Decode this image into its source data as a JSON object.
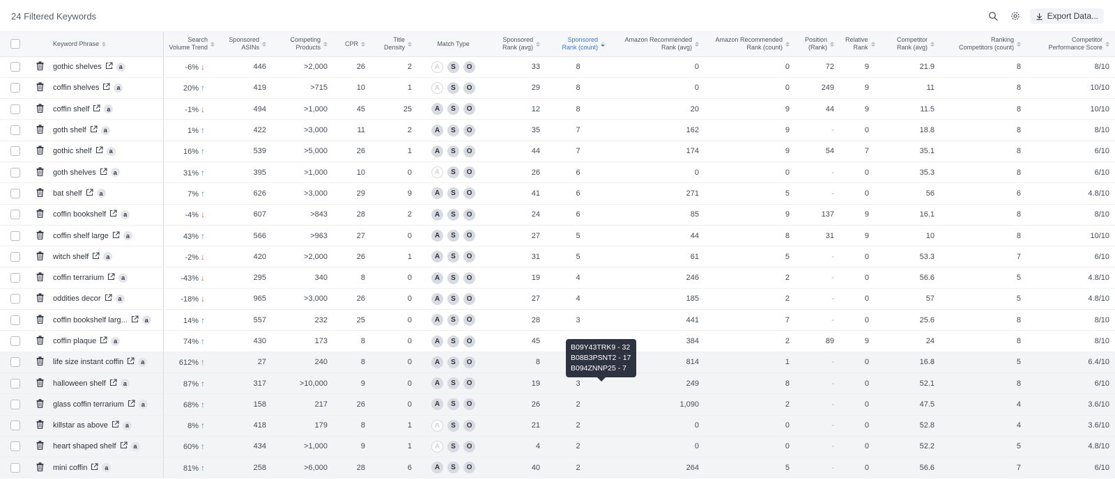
{
  "header": {
    "title": "24 Filtered Keywords",
    "export_label": "Export Data..."
  },
  "columns": {
    "keyword_phrase": "Keyword Phrase",
    "search_volume_trend": [
      "Search",
      "Volume Trend"
    ],
    "sponsored_asins": [
      "Sponsored",
      "ASINs"
    ],
    "competing_products": [
      "Competing",
      "Products"
    ],
    "cpr": "CPR",
    "title_density": [
      "Title",
      "Density"
    ],
    "match_type": "Match Type",
    "sponsored_rank_avg": [
      "Sponsored",
      "Rank (avg)"
    ],
    "sponsored_rank_count": [
      "Sponsored",
      "Rank (count)"
    ],
    "amazon_rec_rank_avg": [
      "Amazon Recommended",
      "Rank (avg)"
    ],
    "amazon_rec_rank_count": [
      "Amazon Recommended",
      "Rank (count)"
    ],
    "position_rank": [
      "Position",
      "(Rank)"
    ],
    "relative_rank": [
      "Relative",
      "Rank"
    ],
    "competitor_rank_avg": [
      "Competitor",
      "Rank (avg)"
    ],
    "ranking_competitors_count": [
      "Ranking",
      "Competitors (count)"
    ],
    "competitor_performance_score": [
      "Competitor",
      "Performance Score"
    ]
  },
  "match_type_letters": [
    "A",
    "S",
    "O"
  ],
  "amazon_badge_letter": "a",
  "rows": [
    {
      "keyword": "gothic shelves",
      "trend": "-6%",
      "dir": "down",
      "asins": "446",
      "competing": ">2,000",
      "cpr": "26",
      "density": "2",
      "a_on": false,
      "spons_avg": "33",
      "spons_count": "8",
      "amz_avg": "0",
      "amz_count": "0",
      "position": "72",
      "relative": "9",
      "comp_avg": "21.9",
      "rank_comp": "8",
      "score": "8/10"
    },
    {
      "keyword": "coffin shelves",
      "trend": "20%",
      "dir": "up",
      "asins": "419",
      "competing": ">715",
      "cpr": "10",
      "density": "1",
      "a_on": false,
      "spons_avg": "29",
      "spons_count": "8",
      "amz_avg": "0",
      "amz_count": "0",
      "position": "249",
      "relative": "9",
      "comp_avg": "11",
      "rank_comp": "8",
      "score": "10/10"
    },
    {
      "keyword": "coffin shelf",
      "trend": "-1%",
      "dir": "down",
      "asins": "494",
      "competing": ">1,000",
      "cpr": "45",
      "density": "25",
      "a_on": true,
      "spons_avg": "12",
      "spons_count": "8",
      "amz_avg": "20",
      "amz_count": "9",
      "position": "44",
      "relative": "9",
      "comp_avg": "11.5",
      "rank_comp": "8",
      "score": "10/10"
    },
    {
      "keyword": "goth shelf",
      "trend": "1%",
      "dir": "up",
      "asins": "422",
      "competing": ">3,000",
      "cpr": "11",
      "density": "2",
      "a_on": true,
      "spons_avg": "35",
      "spons_count": "7",
      "amz_avg": "162",
      "amz_count": "9",
      "position": "-",
      "relative": "0",
      "comp_avg": "18.8",
      "rank_comp": "8",
      "score": "8/10"
    },
    {
      "keyword": "gothic shelf",
      "trend": "16%",
      "dir": "up",
      "asins": "539",
      "competing": ">5,000",
      "cpr": "26",
      "density": "1",
      "a_on": true,
      "spons_avg": "44",
      "spons_count": "7",
      "amz_avg": "174",
      "amz_count": "9",
      "position": "54",
      "relative": "7",
      "comp_avg": "35.1",
      "rank_comp": "8",
      "score": "6/10"
    },
    {
      "keyword": "goth shelves",
      "trend": "31%",
      "dir": "up",
      "asins": "395",
      "competing": ">1,000",
      "cpr": "10",
      "density": "0",
      "a_on": false,
      "spons_avg": "26",
      "spons_count": "6",
      "amz_avg": "0",
      "amz_count": "0",
      "position": "-",
      "relative": "0",
      "comp_avg": "35.3",
      "rank_comp": "8",
      "score": "6/10"
    },
    {
      "keyword": "bat shelf",
      "trend": "7%",
      "dir": "up",
      "asins": "626",
      "competing": ">3,000",
      "cpr": "29",
      "density": "9",
      "a_on": true,
      "spons_avg": "41",
      "spons_count": "6",
      "amz_avg": "271",
      "amz_count": "5",
      "position": "-",
      "relative": "0",
      "comp_avg": "56",
      "rank_comp": "6",
      "score": "4.8/10"
    },
    {
      "keyword": "coffin bookshelf",
      "trend": "-4%",
      "dir": "down",
      "asins": "607",
      "competing": ">843",
      "cpr": "28",
      "density": "2",
      "a_on": true,
      "spons_avg": "24",
      "spons_count": "6",
      "amz_avg": "85",
      "amz_count": "9",
      "position": "137",
      "relative": "9",
      "comp_avg": "16.1",
      "rank_comp": "8",
      "score": "8/10"
    },
    {
      "keyword": "coffin shelf large",
      "trend": "43%",
      "dir": "up",
      "asins": "566",
      "competing": ">963",
      "cpr": "27",
      "density": "0",
      "a_on": true,
      "spons_avg": "27",
      "spons_count": "5",
      "amz_avg": "44",
      "amz_count": "8",
      "position": "31",
      "relative": "9",
      "comp_avg": "10",
      "rank_comp": "8",
      "score": "10/10"
    },
    {
      "keyword": "witch shelf",
      "trend": "-2%",
      "dir": "down",
      "asins": "420",
      "competing": ">2,000",
      "cpr": "26",
      "density": "1",
      "a_on": true,
      "spons_avg": "31",
      "spons_count": "5",
      "amz_avg": "61",
      "amz_count": "5",
      "position": "-",
      "relative": "0",
      "comp_avg": "53.3",
      "rank_comp": "7",
      "score": "6/10"
    },
    {
      "keyword": "coffin terrarium",
      "trend": "-43%",
      "dir": "down",
      "asins": "295",
      "competing": "340",
      "cpr": "8",
      "density": "0",
      "a_on": true,
      "spons_avg": "19",
      "spons_count": "4",
      "amz_avg": "246",
      "amz_count": "2",
      "position": "-",
      "relative": "0",
      "comp_avg": "56.6",
      "rank_comp": "5",
      "score": "4.8/10"
    },
    {
      "keyword": "oddities decor",
      "trend": "-18%",
      "dir": "down",
      "asins": "965",
      "competing": ">3,000",
      "cpr": "26",
      "density": "0",
      "a_on": true,
      "spons_avg": "27",
      "spons_count": "4",
      "amz_avg": "185",
      "amz_count": "2",
      "position": "-",
      "relative": "0",
      "comp_avg": "57",
      "rank_comp": "5",
      "score": "4.8/10"
    },
    {
      "keyword": "coffin bookshelf larg...",
      "trend": "14%",
      "dir": "up",
      "asins": "557",
      "competing": "232",
      "cpr": "25",
      "density": "0",
      "a_on": true,
      "spons_avg": "28",
      "spons_count": "3",
      "amz_avg": "441",
      "amz_count": "7",
      "position": "-",
      "relative": "0",
      "comp_avg": "25.6",
      "rank_comp": "8",
      "score": "8/10"
    },
    {
      "keyword": "coffin plaque",
      "trend": "74%",
      "dir": "up",
      "asins": "430",
      "competing": "173",
      "cpr": "8",
      "density": "0",
      "a_on": true,
      "spons_avg": "45",
      "spons_count": "",
      "amz_avg": "384",
      "amz_count": "2",
      "position": "89",
      "relative": "9",
      "comp_avg": "24",
      "rank_comp": "8",
      "score": "8/10"
    },
    {
      "keyword": "life size instant coffin",
      "trend": "612%",
      "dir": "up",
      "asins": "27",
      "competing": "240",
      "cpr": "8",
      "density": "0",
      "a_on": true,
      "spons_avg": "8",
      "spons_count": "",
      "amz_avg": "814",
      "amz_count": "1",
      "position": "-",
      "relative": "0",
      "comp_avg": "16.8",
      "rank_comp": "5",
      "score": "6.4/10"
    },
    {
      "keyword": "halloween shelf",
      "trend": "87%",
      "dir": "up",
      "asins": "317",
      "competing": ">10,000",
      "cpr": "9",
      "density": "0",
      "a_on": true,
      "spons_avg": "19",
      "spons_count": "3",
      "amz_avg": "249",
      "amz_count": "8",
      "position": "-",
      "relative": "0",
      "comp_avg": "52.1",
      "rank_comp": "8",
      "score": "6/10"
    },
    {
      "keyword": "glass coffin terrarium",
      "trend": "68%",
      "dir": "up",
      "asins": "158",
      "competing": "217",
      "cpr": "26",
      "density": "0",
      "a_on": true,
      "spons_avg": "26",
      "spons_count": "2",
      "amz_avg": "1,090",
      "amz_count": "2",
      "position": "-",
      "relative": "0",
      "comp_avg": "47.5",
      "rank_comp": "4",
      "score": "3.6/10"
    },
    {
      "keyword": "killstar as above",
      "trend": "8%",
      "dir": "up",
      "asins": "418",
      "competing": "179",
      "cpr": "8",
      "density": "1",
      "a_on": false,
      "spons_avg": "21",
      "spons_count": "2",
      "amz_avg": "0",
      "amz_count": "0",
      "position": "-",
      "relative": "0",
      "comp_avg": "52.8",
      "rank_comp": "4",
      "score": "3.6/10"
    },
    {
      "keyword": "heart shaped shelf",
      "trend": "60%",
      "dir": "up",
      "asins": "434",
      "competing": ">1,000",
      "cpr": "9",
      "density": "1",
      "a_on": false,
      "spons_avg": "4",
      "spons_count": "2",
      "amz_avg": "0",
      "amz_count": "0",
      "position": "-",
      "relative": "0",
      "comp_avg": "52.2",
      "rank_comp": "5",
      "score": "4.8/10"
    },
    {
      "keyword": "mini coffin",
      "trend": "81%",
      "dir": "up",
      "asins": "258",
      "competing": ">6,000",
      "cpr": "28",
      "density": "6",
      "a_on": true,
      "spons_avg": "40",
      "spons_count": "2",
      "amz_avg": "264",
      "amz_count": "5",
      "position": "-",
      "relative": "0",
      "comp_avg": "56.6",
      "rank_comp": "7",
      "score": "6/10"
    }
  ],
  "tooltip": {
    "lines": [
      "B09Y43TRK9 - 32",
      "B08B3PSNT2 - 17",
      "B094ZNNP25 - 7"
    ]
  },
  "icons": {
    "search": "search-icon",
    "settings": "gear-icon",
    "download": "download-icon",
    "delete": "trash-icon",
    "external": "external-link-icon",
    "trend_up": "arrow-up-icon",
    "trend_down": "arrow-down-icon"
  },
  "colors": {
    "trend_up": "#35a374",
    "trend_down": "#e2584d",
    "active_sort": "#3d78c9",
    "tooltip_bg": "#2d3340"
  }
}
